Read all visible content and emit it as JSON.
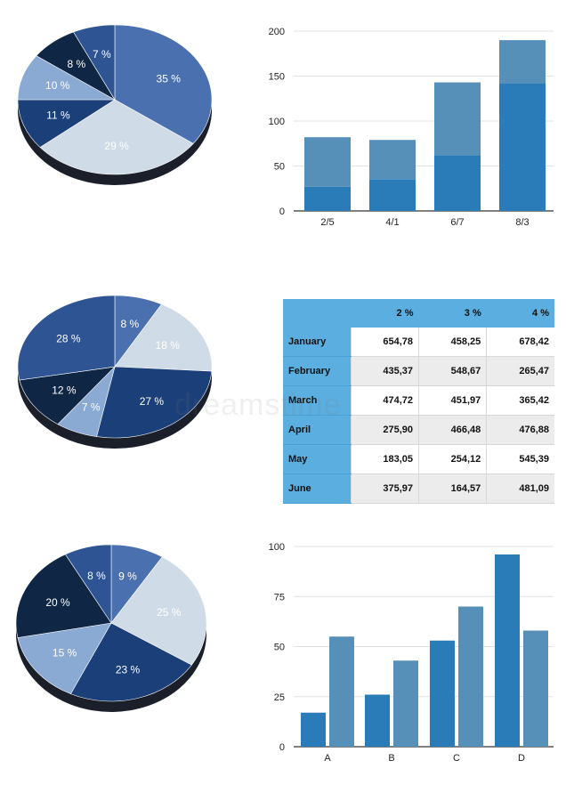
{
  "chart_data": [
    {
      "type": "pie",
      "slices": [
        {
          "label": "35 %",
          "value": 35,
          "color": "#4a70b0"
        },
        {
          "label": "29 %",
          "value": 29,
          "color": "#cfdbe6"
        },
        {
          "label": "11 %",
          "value": 11,
          "color": "#1b3f78"
        },
        {
          "label": "10 %",
          "value": 10,
          "color": "#8aaad4"
        },
        {
          "label": "8 %",
          "value": 8,
          "color": "#0f2645"
        },
        {
          "label": "7 %",
          "value": 7,
          "color": "#2e5494"
        }
      ]
    },
    {
      "type": "bar",
      "stacked": true,
      "categories": [
        "2/5",
        "4/1",
        "6/7",
        "8/3"
      ],
      "series": [
        {
          "values": [
            27,
            35,
            62,
            142
          ],
          "color": "#2a7cb8"
        },
        {
          "values": [
            55,
            44,
            81,
            48
          ],
          "color": "#5690b8"
        }
      ],
      "yticks": [
        "0",
        "50",
        "100",
        "150",
        "200"
      ],
      "ylim": [
        0,
        200
      ],
      "grid": true
    },
    {
      "type": "pie",
      "slices": [
        {
          "label": "8 %",
          "value": 8,
          "color": "#4a70b0"
        },
        {
          "label": "18 %",
          "value": 18,
          "color": "#cfdbe6"
        },
        {
          "label": "27 %",
          "value": 27,
          "color": "#1b3f78"
        },
        {
          "label": "7 %",
          "value": 7,
          "color": "#8aaad4"
        },
        {
          "label": "12 %",
          "value": 12,
          "color": "#0f2645"
        },
        {
          "label": "28 %",
          "value": 28,
          "color": "#2e5494"
        }
      ]
    },
    {
      "type": "table",
      "columns": [
        "",
        "2 %",
        "3 %",
        "4 %"
      ],
      "rows": [
        {
          "label": "January",
          "values": [
            "654,78",
            "458,25",
            "678,42"
          ]
        },
        {
          "label": "February",
          "values": [
            "435,37",
            "548,67",
            "265,47"
          ]
        },
        {
          "label": "March",
          "values": [
            "474,72",
            "451,97",
            "365,42"
          ]
        },
        {
          "label": "April",
          "values": [
            "275,90",
            "466,48",
            "476,88"
          ]
        },
        {
          "label": "May",
          "values": [
            "183,05",
            "254,12",
            "545,39"
          ]
        },
        {
          "label": "June",
          "values": [
            "375,97",
            "164,57",
            "481,09"
          ]
        }
      ]
    },
    {
      "type": "pie",
      "slices": [
        {
          "label": "9 %",
          "value": 9,
          "color": "#4a70b0"
        },
        {
          "label": "25 %",
          "value": 25,
          "color": "#cfdbe6"
        },
        {
          "label": "23 %",
          "value": 23,
          "color": "#1b3f78"
        },
        {
          "label": "15 %",
          "value": 15,
          "color": "#8aaad4"
        },
        {
          "label": "20 %",
          "value": 20,
          "color": "#0f2645"
        },
        {
          "label": "8 %",
          "value": 8,
          "color": "#2e5494"
        }
      ]
    },
    {
      "type": "bar",
      "stacked": false,
      "categories": [
        "A",
        "B",
        "C",
        "D"
      ],
      "series": [
        {
          "values": [
            17,
            26,
            53,
            96
          ],
          "color": "#2a7cb8"
        },
        {
          "values": [
            55,
            43,
            70,
            58
          ],
          "color": "#5690b8"
        }
      ],
      "yticks": [
        "0",
        "25",
        "50",
        "75",
        "100"
      ],
      "ylim": [
        0,
        100
      ],
      "grid": true
    }
  ],
  "watermark": "dreamstime"
}
